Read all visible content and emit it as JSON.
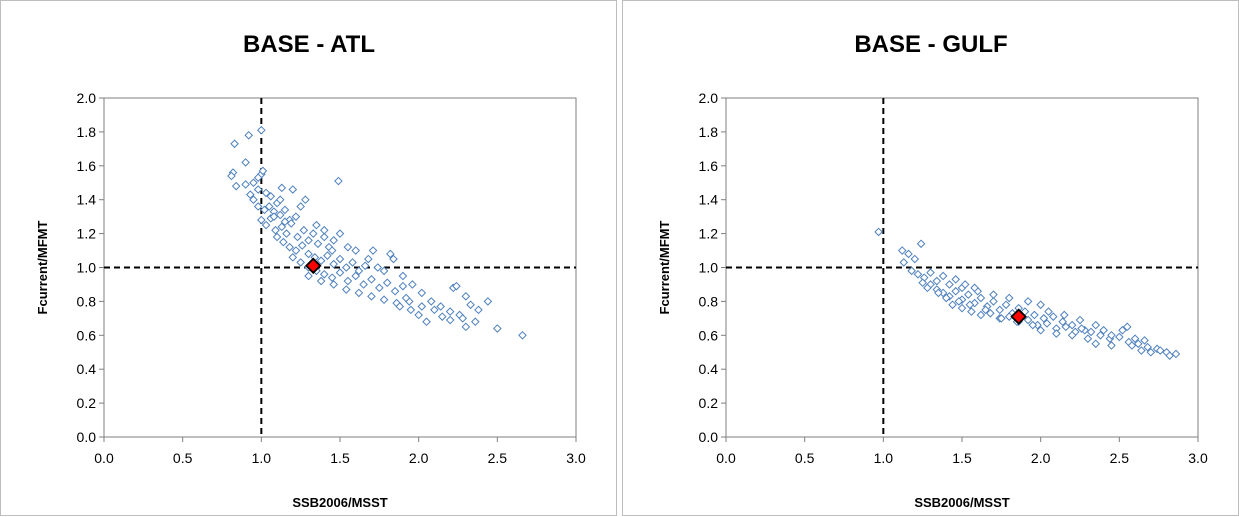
{
  "colors": {
    "points": "#4f81bd",
    "point_fill": "#ffffff",
    "highlight": "#ff0000",
    "reference": "#000000"
  },
  "chart_data": [
    {
      "type": "scatter",
      "title": "BASE - ATL",
      "xlabel": "SSB2006/MSST",
      "ylabel": "Fcurrent/MFMT",
      "xlim": [
        0,
        3
      ],
      "ylim": [
        0,
        2
      ],
      "xticks": [
        "0.0",
        "0.5",
        "1.0",
        "1.5",
        "2.0",
        "2.5",
        "3.0"
      ],
      "yticks": [
        "0.0",
        "0.2",
        "0.4",
        "0.6",
        "0.8",
        "1.0",
        "1.2",
        "1.4",
        "1.6",
        "1.8",
        "2.0"
      ],
      "grid": false,
      "reference_lines": {
        "x": 1.0,
        "y": 1.0
      },
      "highlight_point": {
        "x": 1.33,
        "y": 1.01
      },
      "points": [
        [
          1.0,
          1.81
        ],
        [
          0.92,
          1.78
        ],
        [
          0.83,
          1.73
        ],
        [
          0.9,
          1.62
        ],
        [
          0.82,
          1.56
        ],
        [
          0.81,
          1.54
        ],
        [
          0.84,
          1.48
        ],
        [
          1.0,
          1.55
        ],
        [
          0.98,
          1.53
        ],
        [
          1.01,
          1.57
        ],
        [
          0.95,
          1.5
        ],
        [
          0.98,
          1.46
        ],
        [
          0.9,
          1.49
        ],
        [
          1.49,
          1.51
        ],
        [
          0.93,
          1.43
        ],
        [
          0.95,
          1.4
        ],
        [
          1.03,
          1.44
        ],
        [
          1.06,
          1.42
        ],
        [
          1.13,
          1.47
        ],
        [
          1.2,
          1.46
        ],
        [
          0.98,
          1.36
        ],
        [
          1.02,
          1.34
        ],
        [
          1.05,
          1.36
        ],
        [
          1.08,
          1.33
        ],
        [
          1.1,
          1.38
        ],
        [
          1.12,
          1.31
        ],
        [
          1.15,
          1.34
        ],
        [
          1.18,
          1.28
        ],
        [
          1.22,
          1.3
        ],
        [
          1.25,
          1.36
        ],
        [
          1.0,
          1.28
        ],
        [
          1.03,
          1.25
        ],
        [
          1.06,
          1.29
        ],
        [
          1.09,
          1.22
        ],
        [
          1.13,
          1.24
        ],
        [
          1.16,
          1.2
        ],
        [
          1.19,
          1.26
        ],
        [
          1.23,
          1.18
        ],
        [
          1.27,
          1.22
        ],
        [
          1.3,
          1.16
        ],
        [
          1.33,
          1.2
        ],
        [
          1.36,
          1.14
        ],
        [
          1.4,
          1.18
        ],
        [
          1.43,
          1.12
        ],
        [
          1.46,
          1.16
        ],
        [
          1.1,
          1.18
        ],
        [
          1.14,
          1.15
        ],
        [
          1.18,
          1.12
        ],
        [
          1.22,
          1.1
        ],
        [
          1.26,
          1.13
        ],
        [
          1.3,
          1.08
        ],
        [
          1.34,
          1.06
        ],
        [
          1.38,
          1.04
        ],
        [
          1.42,
          1.07
        ],
        [
          1.46,
          1.02
        ],
        [
          1.5,
          1.05
        ],
        [
          1.54,
          1.0
        ],
        [
          1.58,
          1.03
        ],
        [
          1.62,
          0.98
        ],
        [
          1.66,
          1.01
        ],
        [
          1.2,
          1.06
        ],
        [
          1.25,
          1.03
        ],
        [
          1.3,
          1.0
        ],
        [
          1.35,
          0.98
        ],
        [
          1.4,
          0.96
        ],
        [
          1.45,
          0.94
        ],
        [
          1.5,
          0.97
        ],
        [
          1.55,
          0.92
        ],
        [
          1.6,
          0.95
        ],
        [
          1.65,
          0.9
        ],
        [
          1.7,
          0.93
        ],
        [
          1.75,
          0.88
        ],
        [
          1.8,
          0.91
        ],
        [
          1.85,
          0.86
        ],
        [
          1.9,
          0.89
        ],
        [
          1.3,
          0.95
        ],
        [
          1.38,
          0.92
        ],
        [
          1.46,
          0.9
        ],
        [
          1.54,
          0.87
        ],
        [
          1.62,
          0.85
        ],
        [
          1.7,
          0.83
        ],
        [
          1.78,
          0.81
        ],
        [
          1.86,
          0.79
        ],
        [
          1.94,
          0.8
        ],
        [
          2.02,
          0.77
        ],
        [
          1.71,
          1.1
        ],
        [
          1.82,
          1.08
        ],
        [
          1.84,
          1.05
        ],
        [
          1.74,
          1.0
        ],
        [
          1.9,
          0.95
        ],
        [
          1.96,
          0.9
        ],
        [
          2.02,
          0.85
        ],
        [
          2.08,
          0.8
        ],
        [
          2.14,
          0.77
        ],
        [
          2.2,
          0.74
        ],
        [
          2.26,
          0.72
        ],
        [
          2.22,
          0.88
        ],
        [
          2.24,
          0.89
        ],
        [
          2.3,
          0.83
        ],
        [
          2.33,
          0.78
        ],
        [
          2.38,
          0.75
        ],
        [
          2.44,
          0.8
        ],
        [
          2.2,
          0.69
        ],
        [
          2.05,
          0.68
        ],
        [
          2.15,
          0.71
        ],
        [
          2.28,
          0.7
        ],
        [
          2.3,
          0.65
        ],
        [
          2.36,
          0.68
        ],
        [
          2.5,
          0.64
        ],
        [
          2.66,
          0.6
        ],
        [
          1.95,
          0.75
        ],
        [
          2.0,
          0.72
        ],
        [
          2.1,
          0.75
        ],
        [
          1.88,
          0.77
        ],
        [
          1.92,
          0.82
        ],
        [
          1.45,
          1.1
        ],
        [
          1.55,
          1.12
        ],
        [
          1.35,
          1.25
        ],
        [
          1.4,
          1.22
        ],
        [
          1.28,
          1.4
        ],
        [
          1.5,
          1.2
        ],
        [
          1.6,
          1.1
        ],
        [
          1.68,
          1.05
        ],
        [
          1.78,
          0.98
        ],
        [
          1.12,
          1.4
        ],
        [
          1.08,
          1.3
        ],
        [
          1.15,
          1.27
        ]
      ]
    },
    {
      "type": "scatter",
      "title": "BASE - GULF",
      "xlabel": "SSB2006/MSST",
      "ylabel": "Fcurrent/MFMT",
      "xlim": [
        0,
        3
      ],
      "ylim": [
        0,
        2
      ],
      "xticks": [
        "0.0",
        "0.5",
        "1.0",
        "1.5",
        "2.0",
        "2.5",
        "3.0"
      ],
      "yticks": [
        "0.0",
        "0.2",
        "0.4",
        "0.6",
        "0.8",
        "1.0",
        "1.2",
        "1.4",
        "1.6",
        "1.8",
        "2.0"
      ],
      "grid": false,
      "reference_lines": {
        "x": 1.0,
        "y": 1.0
      },
      "highlight_point": {
        "x": 1.86,
        "y": 0.71
      },
      "points": [
        [
          0.97,
          1.21
        ],
        [
          1.12,
          1.1
        ],
        [
          1.16,
          1.08
        ],
        [
          1.13,
          1.03
        ],
        [
          1.2,
          1.05
        ],
        [
          1.24,
          1.14
        ],
        [
          1.18,
          0.98
        ],
        [
          1.22,
          0.96
        ],
        [
          1.26,
          0.94
        ],
        [
          1.3,
          0.97
        ],
        [
          1.34,
          0.92
        ],
        [
          1.38,
          0.95
        ],
        [
          1.42,
          0.9
        ],
        [
          1.46,
          0.93
        ],
        [
          1.5,
          0.88
        ],
        [
          1.3,
          0.9
        ],
        [
          1.34,
          0.87
        ],
        [
          1.38,
          0.85
        ],
        [
          1.42,
          0.83
        ],
        [
          1.46,
          0.86
        ],
        [
          1.5,
          0.81
        ],
        [
          1.54,
          0.84
        ],
        [
          1.58,
          0.79
        ],
        [
          1.62,
          0.82
        ],
        [
          1.66,
          0.77
        ],
        [
          1.7,
          0.8
        ],
        [
          1.74,
          0.75
        ],
        [
          1.78,
          0.78
        ],
        [
          1.82,
          0.73
        ],
        [
          1.86,
          0.76
        ],
        [
          1.44,
          0.78
        ],
        [
          1.5,
          0.76
        ],
        [
          1.56,
          0.74
        ],
        [
          1.62,
          0.72
        ],
        [
          1.68,
          0.73
        ],
        [
          1.74,
          0.7
        ],
        [
          1.8,
          0.71
        ],
        [
          1.86,
          0.68
        ],
        [
          1.92,
          0.69
        ],
        [
          1.98,
          0.66
        ],
        [
          2.04,
          0.67
        ],
        [
          2.1,
          0.64
        ],
        [
          2.16,
          0.65
        ],
        [
          2.22,
          0.62
        ],
        [
          2.28,
          0.63
        ],
        [
          1.9,
          0.74
        ],
        [
          1.96,
          0.72
        ],
        [
          2.02,
          0.7
        ],
        [
          2.08,
          0.71
        ],
        [
          2.14,
          0.68
        ],
        [
          2.2,
          0.66
        ],
        [
          2.26,
          0.64
        ],
        [
          2.32,
          0.62
        ],
        [
          2.38,
          0.6
        ],
        [
          2.44,
          0.58
        ],
        [
          2.5,
          0.59
        ],
        [
          2.56,
          0.56
        ],
        [
          2.62,
          0.55
        ],
        [
          2.68,
          0.53
        ],
        [
          2.74,
          0.52
        ],
        [
          2.8,
          0.5
        ],
        [
          2.86,
          0.49
        ],
        [
          2.7,
          0.5
        ],
        [
          2.76,
          0.51
        ],
        [
          2.82,
          0.48
        ],
        [
          2.52,
          0.63
        ],
        [
          2.55,
          0.65
        ],
        [
          2.6,
          0.58
        ],
        [
          2.66,
          0.57
        ],
        [
          2.4,
          0.63
        ],
        [
          2.3,
          0.58
        ],
        [
          2.35,
          0.55
        ],
        [
          2.45,
          0.54
        ],
        [
          2.2,
          0.6
        ],
        [
          2.1,
          0.61
        ],
        [
          2.0,
          0.63
        ],
        [
          1.95,
          0.66
        ],
        [
          1.85,
          0.68
        ],
        [
          1.75,
          0.7
        ],
        [
          1.65,
          0.75
        ],
        [
          1.55,
          0.78
        ],
        [
          1.48,
          0.8
        ],
        [
          1.4,
          0.82
        ],
        [
          1.35,
          0.85
        ],
        [
          1.28,
          0.88
        ],
        [
          1.25,
          0.91
        ],
        [
          2.05,
          0.74
        ],
        [
          2.15,
          0.72
        ],
        [
          2.25,
          0.69
        ],
        [
          2.35,
          0.66
        ],
        [
          1.6,
          0.86
        ],
        [
          1.7,
          0.84
        ],
        [
          1.8,
          0.82
        ],
        [
          2.0,
          0.78
        ],
        [
          1.92,
          0.8
        ],
        [
          1.52,
          0.9
        ],
        [
          1.58,
          0.88
        ],
        [
          2.45,
          0.6
        ],
        [
          2.58,
          0.54
        ],
        [
          2.64,
          0.51
        ]
      ]
    }
  ]
}
